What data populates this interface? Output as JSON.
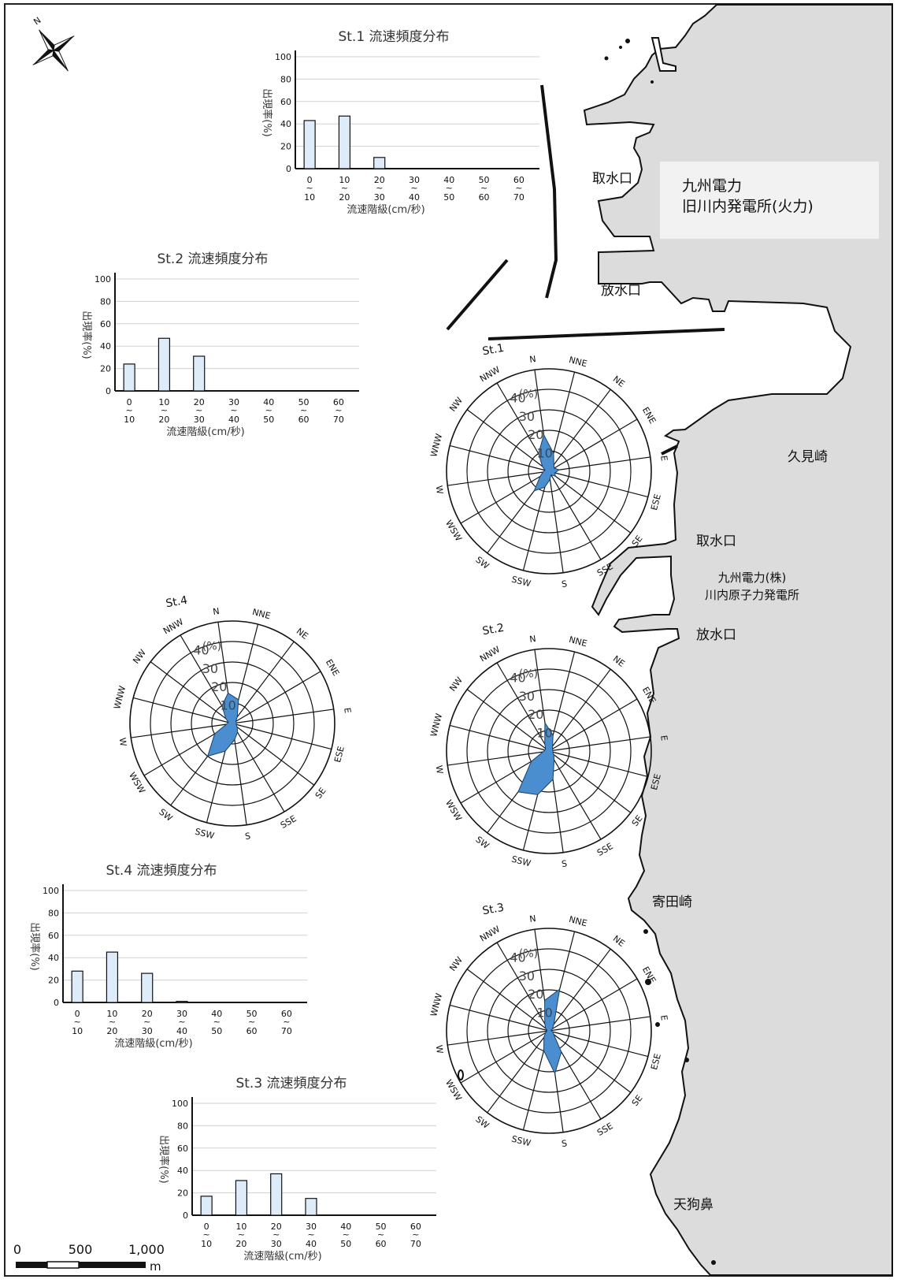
{
  "map": {
    "place_labels": [
      {
        "id": "intake-old",
        "text": "取水口"
      },
      {
        "id": "discharge-old",
        "text": "放水口"
      },
      {
        "id": "kumisaki",
        "text": "久見崎"
      },
      {
        "id": "intake-nuclear",
        "text": "取水口"
      },
      {
        "id": "discharge-nuclear",
        "text": "放水口"
      },
      {
        "id": "yoritazaki",
        "text": "寄田崎"
      },
      {
        "id": "tengubana",
        "text": "天狗鼻"
      }
    ],
    "plant_old": {
      "line1": "九州電力",
      "line2": "旧川内発電所(火力)"
    },
    "plant_nuclear": {
      "line1": "九州電力(株)",
      "line2": "川内原子力発電所"
    },
    "compass_letter": "N",
    "scale_bar": {
      "labels": [
        "0",
        "500",
        "1,000"
      ],
      "unit": "m"
    },
    "colors": {
      "land": "#dcdcdc",
      "sea": "#ffffff",
      "bar_fill": "#deebf9",
      "rose_fill": "#4a8ed0"
    }
  },
  "chart_data": [
    {
      "type": "bar",
      "title": "St.1 流速頻度分布",
      "ylabel": "出現率(%)",
      "xlabel": "流速階級(cm/秒)",
      "ylim": [
        0,
        100
      ],
      "yticks": [
        "0",
        "20",
        "40",
        "60",
        "80",
        "100"
      ],
      "categories": [
        [
          "0",
          "~",
          "10"
        ],
        [
          "10",
          "~",
          "20"
        ],
        [
          "20",
          "~",
          "30"
        ],
        [
          "30",
          "~",
          "40"
        ],
        [
          "40",
          "~",
          "50"
        ],
        [
          "50",
          "~",
          "60"
        ],
        [
          "60",
          "~",
          "70"
        ]
      ],
      "values": [
        43,
        47,
        10,
        0,
        0,
        0,
        0
      ]
    },
    {
      "type": "bar",
      "title": "St.2 流速頻度分布",
      "ylabel": "出現率(%)",
      "xlabel": "流速階級(cm/秒)",
      "ylim": [
        0,
        100
      ],
      "yticks": [
        "0",
        "20",
        "40",
        "60",
        "80",
        "100"
      ],
      "categories": [
        [
          "0",
          "~",
          "10"
        ],
        [
          "10",
          "~",
          "20"
        ],
        [
          "20",
          "~",
          "30"
        ],
        [
          "30",
          "~",
          "40"
        ],
        [
          "40",
          "~",
          "50"
        ],
        [
          "50",
          "~",
          "60"
        ],
        [
          "60",
          "~",
          "70"
        ]
      ],
      "values": [
        24,
        47,
        31,
        0,
        0,
        0,
        0
      ]
    },
    {
      "type": "bar",
      "title": "St.4 流速頻度分布",
      "ylabel": "出現率(%)",
      "xlabel": "流速階級(cm/秒)",
      "ylim": [
        0,
        100
      ],
      "yticks": [
        "0",
        "20",
        "40",
        "60",
        "80",
        "100"
      ],
      "categories": [
        [
          "0",
          "~",
          "10"
        ],
        [
          "10",
          "~",
          "20"
        ],
        [
          "20",
          "~",
          "30"
        ],
        [
          "30",
          "~",
          "40"
        ],
        [
          "40",
          "~",
          "50"
        ],
        [
          "50",
          "~",
          "60"
        ],
        [
          "60",
          "~",
          "70"
        ]
      ],
      "values": [
        28,
        45,
        26,
        1,
        0,
        0,
        0
      ]
    },
    {
      "type": "bar",
      "title": "St.3 流速頻度分布",
      "ylabel": "出現率(%)",
      "xlabel": "流速階級(cm/秒)",
      "ylim": [
        0,
        100
      ],
      "yticks": [
        "0",
        "20",
        "40",
        "60",
        "80",
        "100"
      ],
      "categories": [
        [
          "0",
          "~",
          "10"
        ],
        [
          "10",
          "~",
          "20"
        ],
        [
          "20",
          "~",
          "30"
        ],
        [
          "30",
          "~",
          "40"
        ],
        [
          "40",
          "~",
          "50"
        ],
        [
          "50",
          "~",
          "60"
        ],
        [
          "60",
          "~",
          "70"
        ]
      ],
      "values": [
        17,
        31,
        37,
        15,
        0,
        0,
        0
      ]
    },
    {
      "type": "rose",
      "title": "St.1",
      "unit": "(%)",
      "rlim": [
        0,
        50
      ],
      "ring_labels": [
        "10",
        "20",
        "30",
        "40"
      ],
      "directions": [
        "N",
        "NNE",
        "NE",
        "ENE",
        "E",
        "ESE",
        "SE",
        "SSE",
        "S",
        "SSW",
        "SW",
        "WSW",
        "W",
        "WNW",
        "NW",
        "NNW"
      ],
      "values": [
        18,
        9,
        4,
        3,
        5,
        3,
        4,
        2,
        4,
        8,
        12,
        5,
        3,
        2,
        4,
        10
      ]
    },
    {
      "type": "rose",
      "title": "St.2",
      "unit": "(%)",
      "rlim": [
        0,
        50
      ],
      "ring_labels": [
        "10",
        "20",
        "30",
        "40"
      ],
      "directions": [
        "N",
        "NNE",
        "NE",
        "ENE",
        "E",
        "ESE",
        "SE",
        "SSE",
        "S",
        "SSW",
        "SW",
        "WSW",
        "W",
        "WNW",
        "NW",
        "NNW"
      ],
      "values": [
        14,
        8,
        3,
        2,
        2,
        2,
        3,
        5,
        14,
        22,
        25,
        10,
        3,
        2,
        2,
        4
      ]
    },
    {
      "type": "rose",
      "title": "St.3",
      "unit": "(%)",
      "rlim": [
        0,
        50
      ],
      "ring_labels": [
        "10",
        "20",
        "30",
        "40"
      ],
      "directions": [
        "N",
        "NNE",
        "NE",
        "ENE",
        "E",
        "ESE",
        "SE",
        "SSE",
        "S",
        "SSW",
        "SW",
        "WSW",
        "W",
        "WNW",
        "NW",
        "NNW"
      ],
      "values": [
        15,
        21,
        4,
        2,
        1,
        2,
        3,
        12,
        21,
        10,
        4,
        2,
        1,
        1,
        2,
        4
      ]
    },
    {
      "type": "rose",
      "title": "St.4",
      "unit": "(%)",
      "rlim": [
        0,
        50
      ],
      "ring_labels": [
        "10",
        "20",
        "30",
        "40"
      ],
      "directions": [
        "N",
        "NNE",
        "NE",
        "ENE",
        "E",
        "ESE",
        "SE",
        "SSE",
        "S",
        "SSW",
        "SW",
        "WSW",
        "W",
        "WNW",
        "NW",
        "NNW"
      ],
      "values": [
        15,
        12,
        4,
        2,
        2,
        2,
        3,
        5,
        8,
        14,
        20,
        10,
        3,
        2,
        4,
        10
      ]
    }
  ]
}
